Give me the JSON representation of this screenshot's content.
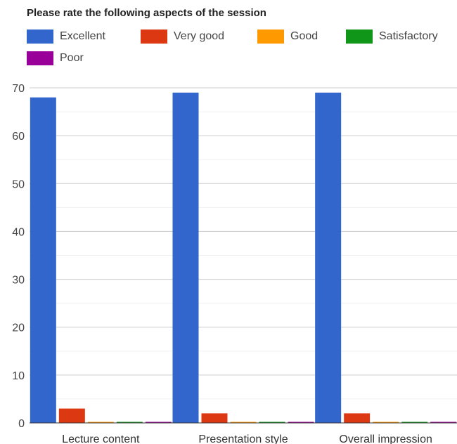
{
  "chart_data": {
    "type": "bar",
    "title": "Please rate the following aspects of the session",
    "xlabel": "",
    "ylabel": "",
    "categories": [
      "Lecture content",
      "Presentation style",
      "Overall impression"
    ],
    "series": [
      {
        "name": "Excellent",
        "color": "#3366cc",
        "values": [
          68,
          69,
          69
        ]
      },
      {
        "name": "Very good",
        "color": "#dc3912",
        "values": [
          3,
          2,
          2
        ]
      },
      {
        "name": "Good",
        "color": "#ff9900",
        "values": [
          0,
          0,
          0
        ]
      },
      {
        "name": "Satisfactory",
        "color": "#109618",
        "values": [
          0,
          0,
          0
        ]
      },
      {
        "name": "Poor",
        "color": "#990099",
        "values": [
          0,
          0,
          0
        ]
      }
    ],
    "ylim": [
      0,
      70
    ],
    "yticks": [
      0,
      10,
      20,
      30,
      40,
      50,
      60,
      70
    ],
    "grid": true,
    "legend_position": "top"
  }
}
